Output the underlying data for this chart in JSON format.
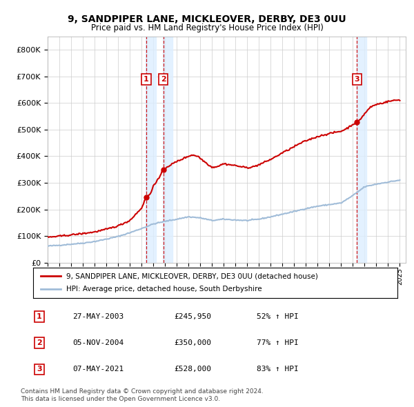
{
  "title": "9, SANDPIPER LANE, MICKLEOVER, DERBY, DE3 0UU",
  "subtitle": "Price paid vs. HM Land Registry's House Price Index (HPI)",
  "hpi_label": "HPI: Average price, detached house, South Derbyshire",
  "property_label": "9, SANDPIPER LANE, MICKLEOVER, DERBY, DE3 0UU (detached house)",
  "footer1": "Contains HM Land Registry data © Crown copyright and database right 2024.",
  "footer2": "This data is licensed under the Open Government Licence v3.0.",
  "purchases": [
    {
      "num": 1,
      "date": "27-MAY-2003",
      "price": 245950,
      "year": 2003.4,
      "pct": "52%",
      "dir": "↑"
    },
    {
      "num": 2,
      "date": "05-NOV-2004",
      "price": 350000,
      "year": 2004.85,
      "pct": "77%",
      "dir": "↑"
    },
    {
      "num": 3,
      "date": "07-MAY-2021",
      "price": 528000,
      "year": 2021.35,
      "pct": "83%",
      "dir": "↑"
    }
  ],
  "ylim": [
    0,
    850000
  ],
  "yticks": [
    0,
    100000,
    200000,
    300000,
    400000,
    500000,
    600000,
    700000,
    800000
  ],
  "xlim_start": 1995,
  "xlim_end": 2025.5,
  "background_color": "#ffffff",
  "grid_color": "#cccccc",
  "hpi_color": "#a0bcd8",
  "property_color": "#cc0000",
  "vline_color": "#cc0000",
  "shade_color": "#ddeeff",
  "hpi_anchors": [
    [
      1995.0,
      62000
    ],
    [
      1996.0,
      65000
    ],
    [
      1997.0,
      69000
    ],
    [
      1998.0,
      73000
    ],
    [
      1999.0,
      79000
    ],
    [
      2000.0,
      88000
    ],
    [
      2001.0,
      98000
    ],
    [
      2002.0,
      112000
    ],
    [
      2003.0,
      128000
    ],
    [
      2004.0,
      145000
    ],
    [
      2005.0,
      155000
    ],
    [
      2006.0,
      163000
    ],
    [
      2007.0,
      172000
    ],
    [
      2008.0,
      168000
    ],
    [
      2009.0,
      158000
    ],
    [
      2010.0,
      163000
    ],
    [
      2011.0,
      160000
    ],
    [
      2012.0,
      158000
    ],
    [
      2013.0,
      163000
    ],
    [
      2014.0,
      172000
    ],
    [
      2015.0,
      182000
    ],
    [
      2016.0,
      192000
    ],
    [
      2017.0,
      203000
    ],
    [
      2018.0,
      212000
    ],
    [
      2019.0,
      218000
    ],
    [
      2020.0,
      224000
    ],
    [
      2021.0,
      252000
    ],
    [
      2022.0,
      285000
    ],
    [
      2023.0,
      295000
    ],
    [
      2024.0,
      303000
    ],
    [
      2025.0,
      310000
    ]
  ],
  "prop_anchors": [
    [
      1995.0,
      95000
    ],
    [
      1996.0,
      99000
    ],
    [
      1997.0,
      104000
    ],
    [
      1998.0,
      109000
    ],
    [
      1999.0,
      115000
    ],
    [
      2000.0,
      125000
    ],
    [
      2001.0,
      138000
    ],
    [
      2002.0,
      158000
    ],
    [
      2003.0,
      205000
    ],
    [
      2003.4,
      245950
    ],
    [
      2003.8,
      260000
    ],
    [
      2004.0,
      290000
    ],
    [
      2004.5,
      318000
    ],
    [
      2004.85,
      350000
    ],
    [
      2005.0,
      355000
    ],
    [
      2005.5,
      368000
    ],
    [
      2006.0,
      380000
    ],
    [
      2006.5,
      390000
    ],
    [
      2007.0,
      400000
    ],
    [
      2007.3,
      405000
    ],
    [
      2007.8,
      400000
    ],
    [
      2008.0,
      392000
    ],
    [
      2008.5,
      375000
    ],
    [
      2009.0,
      358000
    ],
    [
      2009.5,
      362000
    ],
    [
      2010.0,
      372000
    ],
    [
      2010.5,
      368000
    ],
    [
      2011.0,
      365000
    ],
    [
      2011.5,
      360000
    ],
    [
      2012.0,
      357000
    ],
    [
      2012.5,
      360000
    ],
    [
      2013.0,
      368000
    ],
    [
      2013.5,
      378000
    ],
    [
      2014.0,
      388000
    ],
    [
      2014.5,
      400000
    ],
    [
      2015.0,
      413000
    ],
    [
      2015.5,
      424000
    ],
    [
      2016.0,
      436000
    ],
    [
      2016.5,
      448000
    ],
    [
      2017.0,
      458000
    ],
    [
      2017.5,
      466000
    ],
    [
      2018.0,
      474000
    ],
    [
      2018.5,
      480000
    ],
    [
      2019.0,
      485000
    ],
    [
      2019.5,
      490000
    ],
    [
      2020.0,
      494000
    ],
    [
      2020.5,
      505000
    ],
    [
      2021.0,
      520000
    ],
    [
      2021.35,
      528000
    ],
    [
      2021.5,
      532000
    ],
    [
      2022.0,
      560000
    ],
    [
      2022.5,
      585000
    ],
    [
      2023.0,
      595000
    ],
    [
      2023.5,
      600000
    ],
    [
      2024.0,
      606000
    ],
    [
      2024.5,
      610000
    ],
    [
      2025.0,
      612000
    ]
  ]
}
